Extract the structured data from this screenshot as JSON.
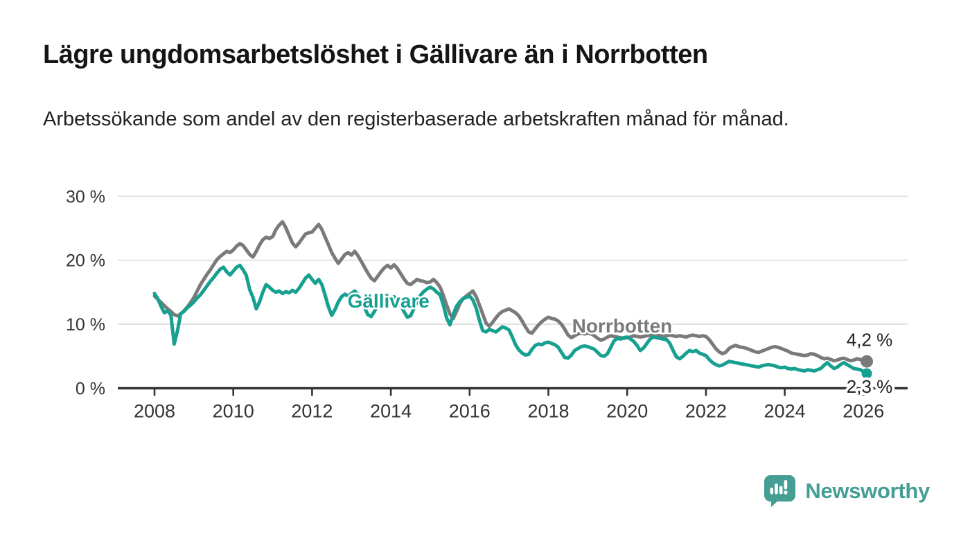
{
  "header": {
    "title": "Lägre ungdomsarbetslöshet i Gällivare än i Norrbotten",
    "subtitle": "Arbetssökande som andel av den registerbaserade arbetskraften månad för månad."
  },
  "footer": {
    "brand": "Newsworthy",
    "logo_color": "#459e94"
  },
  "chart_data": {
    "type": "line",
    "title": "Lägre ungdomsarbetslöshet i Gällivare än i Norrbotten",
    "subtitle": "Arbetssökande som andel av den registerbaserade arbetskraften månad för månad.",
    "grid": "horizontal-only",
    "colors": {
      "axis": "#333333",
      "tick_text": "#333333",
      "gridline": "#dcdcdc",
      "end_label_text": "#222222"
    },
    "y_axis": {
      "unit": "%",
      "range": [
        0,
        30
      ],
      "ticks": [
        {
          "value": 0,
          "label": "0 %"
        },
        {
          "value": 10,
          "label": "10 %"
        },
        {
          "value": 20,
          "label": "20 %"
        },
        {
          "value": 30,
          "label": "30 %"
        }
      ],
      "gridline_values": [
        10,
        20,
        30
      ]
    },
    "x_axis": {
      "range": [
        2008.0,
        2026.1
      ],
      "ticks": [
        {
          "value": 2008,
          "label": "2008"
        },
        {
          "value": 2010,
          "label": "2010"
        },
        {
          "value": 2012,
          "label": "2012"
        },
        {
          "value": 2014,
          "label": "2014"
        },
        {
          "value": 2016,
          "label": "2016"
        },
        {
          "value": 2018,
          "label": "2018"
        },
        {
          "value": 2020,
          "label": "2020"
        },
        {
          "value": 2022,
          "label": "2022"
        },
        {
          "value": 2024,
          "label": "2024"
        },
        {
          "value": 2026,
          "label": "2026"
        }
      ]
    },
    "series": [
      {
        "name": "Gällivare",
        "color": "#17a090",
        "end_label": "2,3 %",
        "end_label_side": "below",
        "inline_label": {
          "text": "Gällivare",
          "x": 2012.9,
          "y": 12.6
        },
        "start_year": 2008,
        "points_per_year": 12,
        "values": [
          14.8,
          14.0,
          12.8,
          11.8,
          12.1,
          11.4,
          6.9,
          9.0,
          11.7,
          12.0,
          12.6,
          13.0,
          13.5,
          14.1,
          14.6,
          15.3,
          16.0,
          16.7,
          17.3,
          18.0,
          18.6,
          18.9,
          18.2,
          17.7,
          18.3,
          18.9,
          19.2,
          18.5,
          17.6,
          15.4,
          14.2,
          12.4,
          13.5,
          15.0,
          16.2,
          15.8,
          15.3,
          15.0,
          15.2,
          14.8,
          15.1,
          14.9,
          15.3,
          15.0,
          15.6,
          16.4,
          17.2,
          17.7,
          17.0,
          16.4,
          17.0,
          16.2,
          14.5,
          12.7,
          11.4,
          12.3,
          13.5,
          14.3,
          14.7,
          14.4,
          14.8,
          15.2,
          14.6,
          13.8,
          12.6,
          11.5,
          11.2,
          12.0,
          13.0,
          13.6,
          14.0,
          13.7,
          14.0,
          14.3,
          13.8,
          13.0,
          12.0,
          11.1,
          11.3,
          12.4,
          13.6,
          14.5,
          15.1,
          15.5,
          15.8,
          15.5,
          15.0,
          14.6,
          13.0,
          11.0,
          9.9,
          11.5,
          12.8,
          13.5,
          14.0,
          14.2,
          14.4,
          13.8,
          12.5,
          10.6,
          9.0,
          8.8,
          9.2,
          9.0,
          8.8,
          9.2,
          9.6,
          9.4,
          9.1,
          8.0,
          6.8,
          6.0,
          5.5,
          5.2,
          5.3,
          6.1,
          6.7,
          6.9,
          6.8,
          7.1,
          7.2,
          7.0,
          6.8,
          6.4,
          5.6,
          4.8,
          4.7,
          5.2,
          5.9,
          6.2,
          6.5,
          6.6,
          6.5,
          6.3,
          6.1,
          5.6,
          5.1,
          5.0,
          5.4,
          6.4,
          7.4,
          7.8,
          7.7,
          7.9,
          8.0,
          7.7,
          7.3,
          6.7,
          5.9,
          6.3,
          7.0,
          7.7,
          8.0,
          7.9,
          7.8,
          7.7,
          7.6,
          7.0,
          5.9,
          4.9,
          4.6,
          5.0,
          5.5,
          5.9,
          5.7,
          5.9,
          5.5,
          5.3,
          5.1,
          4.5,
          4.0,
          3.7,
          3.5,
          3.6,
          3.9,
          4.2,
          4.1,
          4.0,
          3.9,
          3.8,
          3.7,
          3.6,
          3.5,
          3.4,
          3.3,
          3.5,
          3.6,
          3.7,
          3.6,
          3.5,
          3.3,
          3.2,
          3.3,
          3.1,
          3.0,
          3.1,
          2.9,
          2.8,
          2.7,
          2.9,
          2.8,
          2.7,
          2.9,
          3.1,
          3.6,
          4.0,
          3.5,
          3.1,
          3.3,
          3.7,
          4.0,
          3.7,
          3.4,
          3.1,
          3.0,
          2.9,
          2.6,
          2.3
        ]
      },
      {
        "name": "Norrbotten",
        "color": "#7a7a7a",
        "end_label": "4,2 %",
        "end_label_side": "above",
        "inline_label": {
          "text": "Norrbotten",
          "x": 2018.6,
          "y": 8.7
        },
        "start_year": 2008,
        "points_per_year": 12,
        "values": [
          14.4,
          13.9,
          13.4,
          12.9,
          12.4,
          12.0,
          11.5,
          11.3,
          11.6,
          12.1,
          12.7,
          13.4,
          14.2,
          15.2,
          16.2,
          17.0,
          17.8,
          18.5,
          19.3,
          20.1,
          20.6,
          21.0,
          21.4,
          21.2,
          21.6,
          22.2,
          22.6,
          22.3,
          21.6,
          20.9,
          20.5,
          21.4,
          22.4,
          23.2,
          23.6,
          23.4,
          23.7,
          24.8,
          25.5,
          26.0,
          25.1,
          23.9,
          22.7,
          22.1,
          22.7,
          23.4,
          24.1,
          24.3,
          24.4,
          25.0,
          25.6,
          24.8,
          23.6,
          22.4,
          21.2,
          20.3,
          19.5,
          20.2,
          20.9,
          21.2,
          20.8,
          21.4,
          20.7,
          19.8,
          18.9,
          18.0,
          17.2,
          16.8,
          17.5,
          18.2,
          18.8,
          19.2,
          18.8,
          19.3,
          18.7,
          17.9,
          17.1,
          16.4,
          16.2,
          16.6,
          17.0,
          16.8,
          16.7,
          16.5,
          16.6,
          17.0,
          16.5,
          15.8,
          14.5,
          13.0,
          11.6,
          10.9,
          12.0,
          13.2,
          14.0,
          14.4,
          14.8,
          15.2,
          14.3,
          13.0,
          11.6,
          10.2,
          9.7,
          10.3,
          11.0,
          11.6,
          12.0,
          12.2,
          12.4,
          12.1,
          11.8,
          11.3,
          10.5,
          9.6,
          8.8,
          8.6,
          9.3,
          9.9,
          10.4,
          10.8,
          11.1,
          10.9,
          10.8,
          10.5,
          10.0,
          9.2,
          8.3,
          7.9,
          8.2,
          8.5,
          8.6,
          8.5,
          8.6,
          8.5,
          8.2,
          7.8,
          7.5,
          7.7,
          8.0,
          8.2,
          8.1,
          8.0,
          7.9,
          7.8,
          7.9,
          8.0,
          8.2,
          8.1,
          8.0,
          8.1,
          8.2,
          8.3,
          8.2,
          8.3,
          8.2,
          8.1,
          8.2,
          8.3,
          8.2,
          8.1,
          8.2,
          8.1,
          8.0,
          8.2,
          8.3,
          8.2,
          8.1,
          8.2,
          8.1,
          7.6,
          6.9,
          6.2,
          5.7,
          5.4,
          5.6,
          6.2,
          6.5,
          6.7,
          6.5,
          6.4,
          6.3,
          6.1,
          5.9,
          5.7,
          5.6,
          5.8,
          6.0,
          6.2,
          6.4,
          6.5,
          6.4,
          6.2,
          6.0,
          5.8,
          5.5,
          5.4,
          5.3,
          5.2,
          5.1,
          5.2,
          5.4,
          5.3,
          5.1,
          4.8,
          4.6,
          4.7,
          4.5,
          4.3,
          4.4,
          4.6,
          4.7,
          4.5,
          4.3,
          4.4,
          4.6,
          4.5,
          4.4,
          4.2
        ]
      }
    ]
  }
}
